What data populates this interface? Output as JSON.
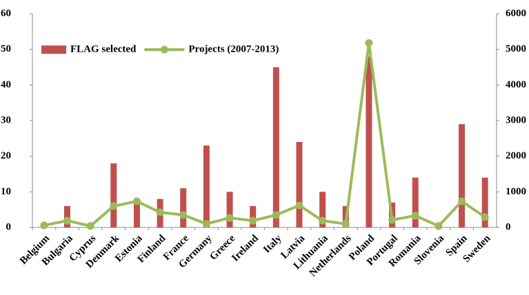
{
  "chart_data": {
    "type": "bar_line",
    "categories": [
      "Belgium",
      "Bulgaria",
      "Cyprus",
      "Denmark",
      "Estonia",
      "Finland",
      "France",
      "Germany",
      "Greece",
      "Ireland",
      "Italy",
      "Latvia",
      "Lithuania",
      "Netherlands",
      "Poland",
      "Portugal",
      "Romania",
      "Slovenia",
      "Spain",
      "Sweden"
    ],
    "series": [
      {
        "name": "FLAG selected",
        "type": "bar",
        "color": "#c0504d",
        "values": [
          0,
          6,
          0,
          18,
          8,
          8,
          11,
          23,
          10,
          6,
          45,
          24,
          10,
          6,
          48,
          7,
          14,
          0,
          29,
          14
        ]
      },
      {
        "name": "Projects (2007-2013)",
        "type": "line",
        "axis": "y2",
        "color": "#9bbb59",
        "values": [
          58,
          190,
          40,
          600,
          735,
          425,
          350,
          100,
          270,
          190,
          350,
          620,
          190,
          100,
          5180,
          210,
          330,
          40,
          735,
          290
        ]
      }
    ],
    "ylim": [
      0,
      60
    ],
    "yticks": [
      0,
      10,
      20,
      30,
      40,
      50,
      60
    ],
    "y2lim": [
      0,
      6000
    ],
    "y2ticks": [
      0,
      1000,
      2000,
      3000,
      4000,
      5000,
      6000
    ],
    "legend": "top"
  }
}
